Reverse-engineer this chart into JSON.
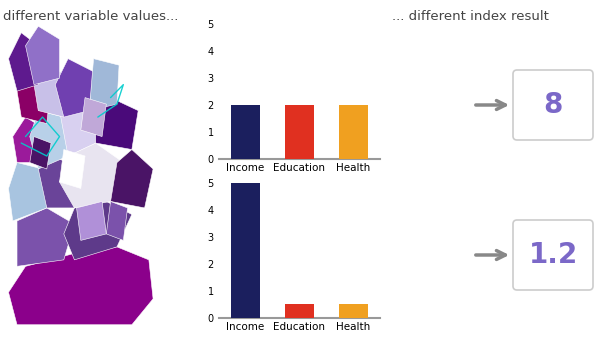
{
  "background_color": "#ffffff",
  "title_left": "different variable values...",
  "title_right": "... different index result",
  "title_fontsize": 9.5,
  "chart1": {
    "categories": [
      "Income",
      "Education",
      "Health"
    ],
    "values": [
      2,
      2,
      2
    ],
    "bar_colors": [
      "#1b1f5e",
      "#e03020",
      "#f0a020"
    ],
    "ylim": [
      0,
      5
    ],
    "yticks": [
      0,
      1,
      2,
      3,
      4,
      5
    ]
  },
  "chart2": {
    "categories": [
      "Income",
      "Education",
      "Health"
    ],
    "values": [
      5,
      0.5,
      0.5
    ],
    "bar_colors": [
      "#1b1f5e",
      "#e03020",
      "#f0a020"
    ],
    "ylim": [
      0,
      5
    ],
    "yticks": [
      0,
      1,
      2,
      3,
      4,
      5
    ]
  },
  "result1": "8",
  "result2": "1.2",
  "result_color": "#7b68c8",
  "result_fontsize": 20,
  "spine_color": "#999999",
  "tick_fontsize": 7,
  "label_fontsize": 7.5
}
